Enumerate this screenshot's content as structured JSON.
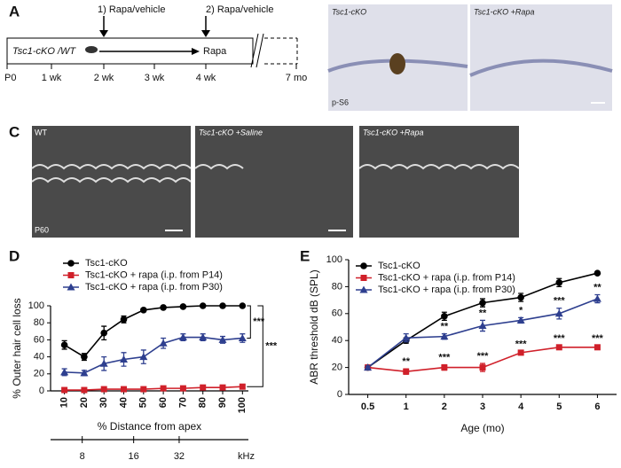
{
  "panels": {
    "a": {
      "label": "A",
      "steps": [
        "1) Rapa/vehicle",
        "2) Rapa/vehicle"
      ],
      "group": "Tsc1-cKO /WT",
      "treatment": "Rapa",
      "timeline": [
        "P0",
        "1 wk",
        "2 wk",
        "3 wk",
        "4 wk",
        "7 mo"
      ]
    },
    "b": {
      "label": "B",
      "images": [
        "Tsc1-cKO",
        "Tsc1-cKO +Rapa"
      ],
      "stain": "p-S6"
    },
    "c": {
      "label": "C",
      "images": [
        "WT",
        "Tsc1-cKO +Saline",
        "Tsc1-cKO +Rapa"
      ],
      "age": "P60"
    }
  },
  "chart_data": [
    {
      "type": "line",
      "panel_label": "D",
      "xlabel": "% Distance from apex",
      "ylabel": "% Outer hair cell loss",
      "x": [
        10,
        20,
        30,
        40,
        50,
        60,
        70,
        80,
        90,
        100
      ],
      "xlim": [
        3,
        103
      ],
      "xticks": [
        10,
        20,
        30,
        40,
        50,
        60,
        70,
        80,
        90,
        100
      ],
      "ylim": [
        0,
        100
      ],
      "yticks": [
        0,
        20,
        40,
        60,
        80,
        100
      ],
      "x2label": "kHz",
      "x2ticks": [
        {
          "value": 19,
          "label": "8"
        },
        {
          "value": 45,
          "label": "16"
        },
        {
          "value": 68,
          "label": "32"
        }
      ],
      "series": [
        {
          "name": "Tsc1-cKO",
          "color": "#000000",
          "marker": "circle",
          "values": [
            54,
            40,
            68,
            84,
            95,
            98,
            99,
            100,
            100,
            100
          ],
          "errors": [
            5,
            4,
            8,
            4,
            2,
            1,
            1,
            1,
            1,
            1
          ]
        },
        {
          "name": "Tsc1-cKO + rapa (i.p. from P14)",
          "color": "#d0202a",
          "marker": "square",
          "values": [
            1,
            1,
            2,
            2,
            2,
            3,
            3,
            4,
            4,
            5
          ],
          "errors": [
            1,
            1,
            1,
            1,
            1,
            1,
            1,
            1,
            1,
            1
          ]
        },
        {
          "name": "Tsc1-cKO + rapa (i.p. from P30)",
          "color": "#2e3f8f",
          "marker": "triangle",
          "values": [
            22,
            21,
            32,
            37,
            40,
            56,
            63,
            63,
            60,
            62
          ],
          "errors": [
            4,
            3,
            8,
            8,
            8,
            6,
            4,
            4,
            4,
            5
          ]
        }
      ],
      "annotations": [
        "***",
        "***"
      ]
    },
    {
      "type": "line",
      "panel_label": "E",
      "xlabel": "Age (mo)",
      "ylabel": "ABR threshold dB (SPL)",
      "categories": [
        "0.5",
        "1",
        "2",
        "3",
        "4",
        "5",
        "6"
      ],
      "ylim": [
        0,
        100
      ],
      "yticks": [
        0,
        20,
        40,
        60,
        80,
        100
      ],
      "series": [
        {
          "name": "Tsc1-cKO",
          "color": "#000000",
          "marker": "circle",
          "values": [
            20,
            40,
            58,
            68,
            72,
            83,
            90
          ],
          "errors": [
            1,
            2,
            3,
            3,
            3,
            3,
            1
          ]
        },
        {
          "name": "Tsc1-cKO + rapa (i.p. from P14)",
          "color": "#d0202a",
          "marker": "square",
          "values": [
            20,
            17,
            20,
            20,
            31,
            35,
            35
          ],
          "errors": [
            1,
            2,
            2,
            3,
            1,
            1,
            1
          ],
          "stars": [
            null,
            "**",
            "***",
            "***",
            "***",
            "***",
            "***"
          ]
        },
        {
          "name": "Tsc1-cKO + rapa (i.p. from P30)",
          "color": "#2e3f8f",
          "marker": "triangle",
          "values": [
            20,
            42,
            43,
            51,
            55,
            60,
            71
          ],
          "errors": [
            1,
            3,
            2,
            4,
            2,
            4,
            3
          ],
          "stars": [
            null,
            null,
            "**",
            "**",
            "*",
            "***",
            "**"
          ]
        }
      ]
    }
  ]
}
